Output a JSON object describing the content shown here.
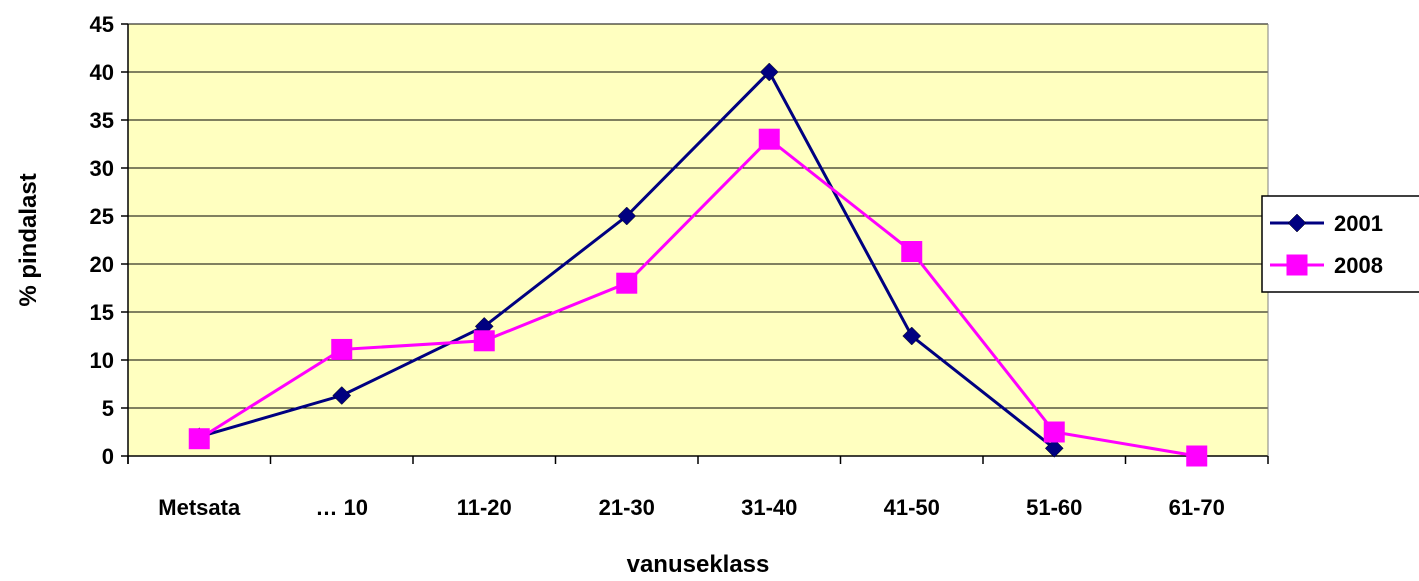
{
  "chart_data": {
    "type": "line",
    "title": "",
    "xlabel": "vanuseklass",
    "ylabel": "% pindalast",
    "categories": [
      "Metsata",
      "… 10",
      "11-20",
      "21-30",
      "31-40",
      "41-50",
      "51-60",
      "61-70"
    ],
    "ylim": [
      0,
      45
    ],
    "yticks": [
      "0",
      "5",
      "10",
      "15",
      "20",
      "25",
      "30",
      "35",
      "40",
      "45"
    ],
    "grid": true,
    "legend_position": "right",
    "plot_background": "#FFFFC0",
    "series": [
      {
        "name": "2001",
        "color": "#000080",
        "marker": "diamond",
        "values": [
          2,
          6.3,
          13.5,
          25,
          40,
          12.5,
          0.8,
          null
        ]
      },
      {
        "name": "2008",
        "color": "#FF00FF",
        "marker": "square",
        "values": [
          1.8,
          11.1,
          12,
          18,
          33,
          21.3,
          2.5,
          0
        ]
      }
    ]
  }
}
